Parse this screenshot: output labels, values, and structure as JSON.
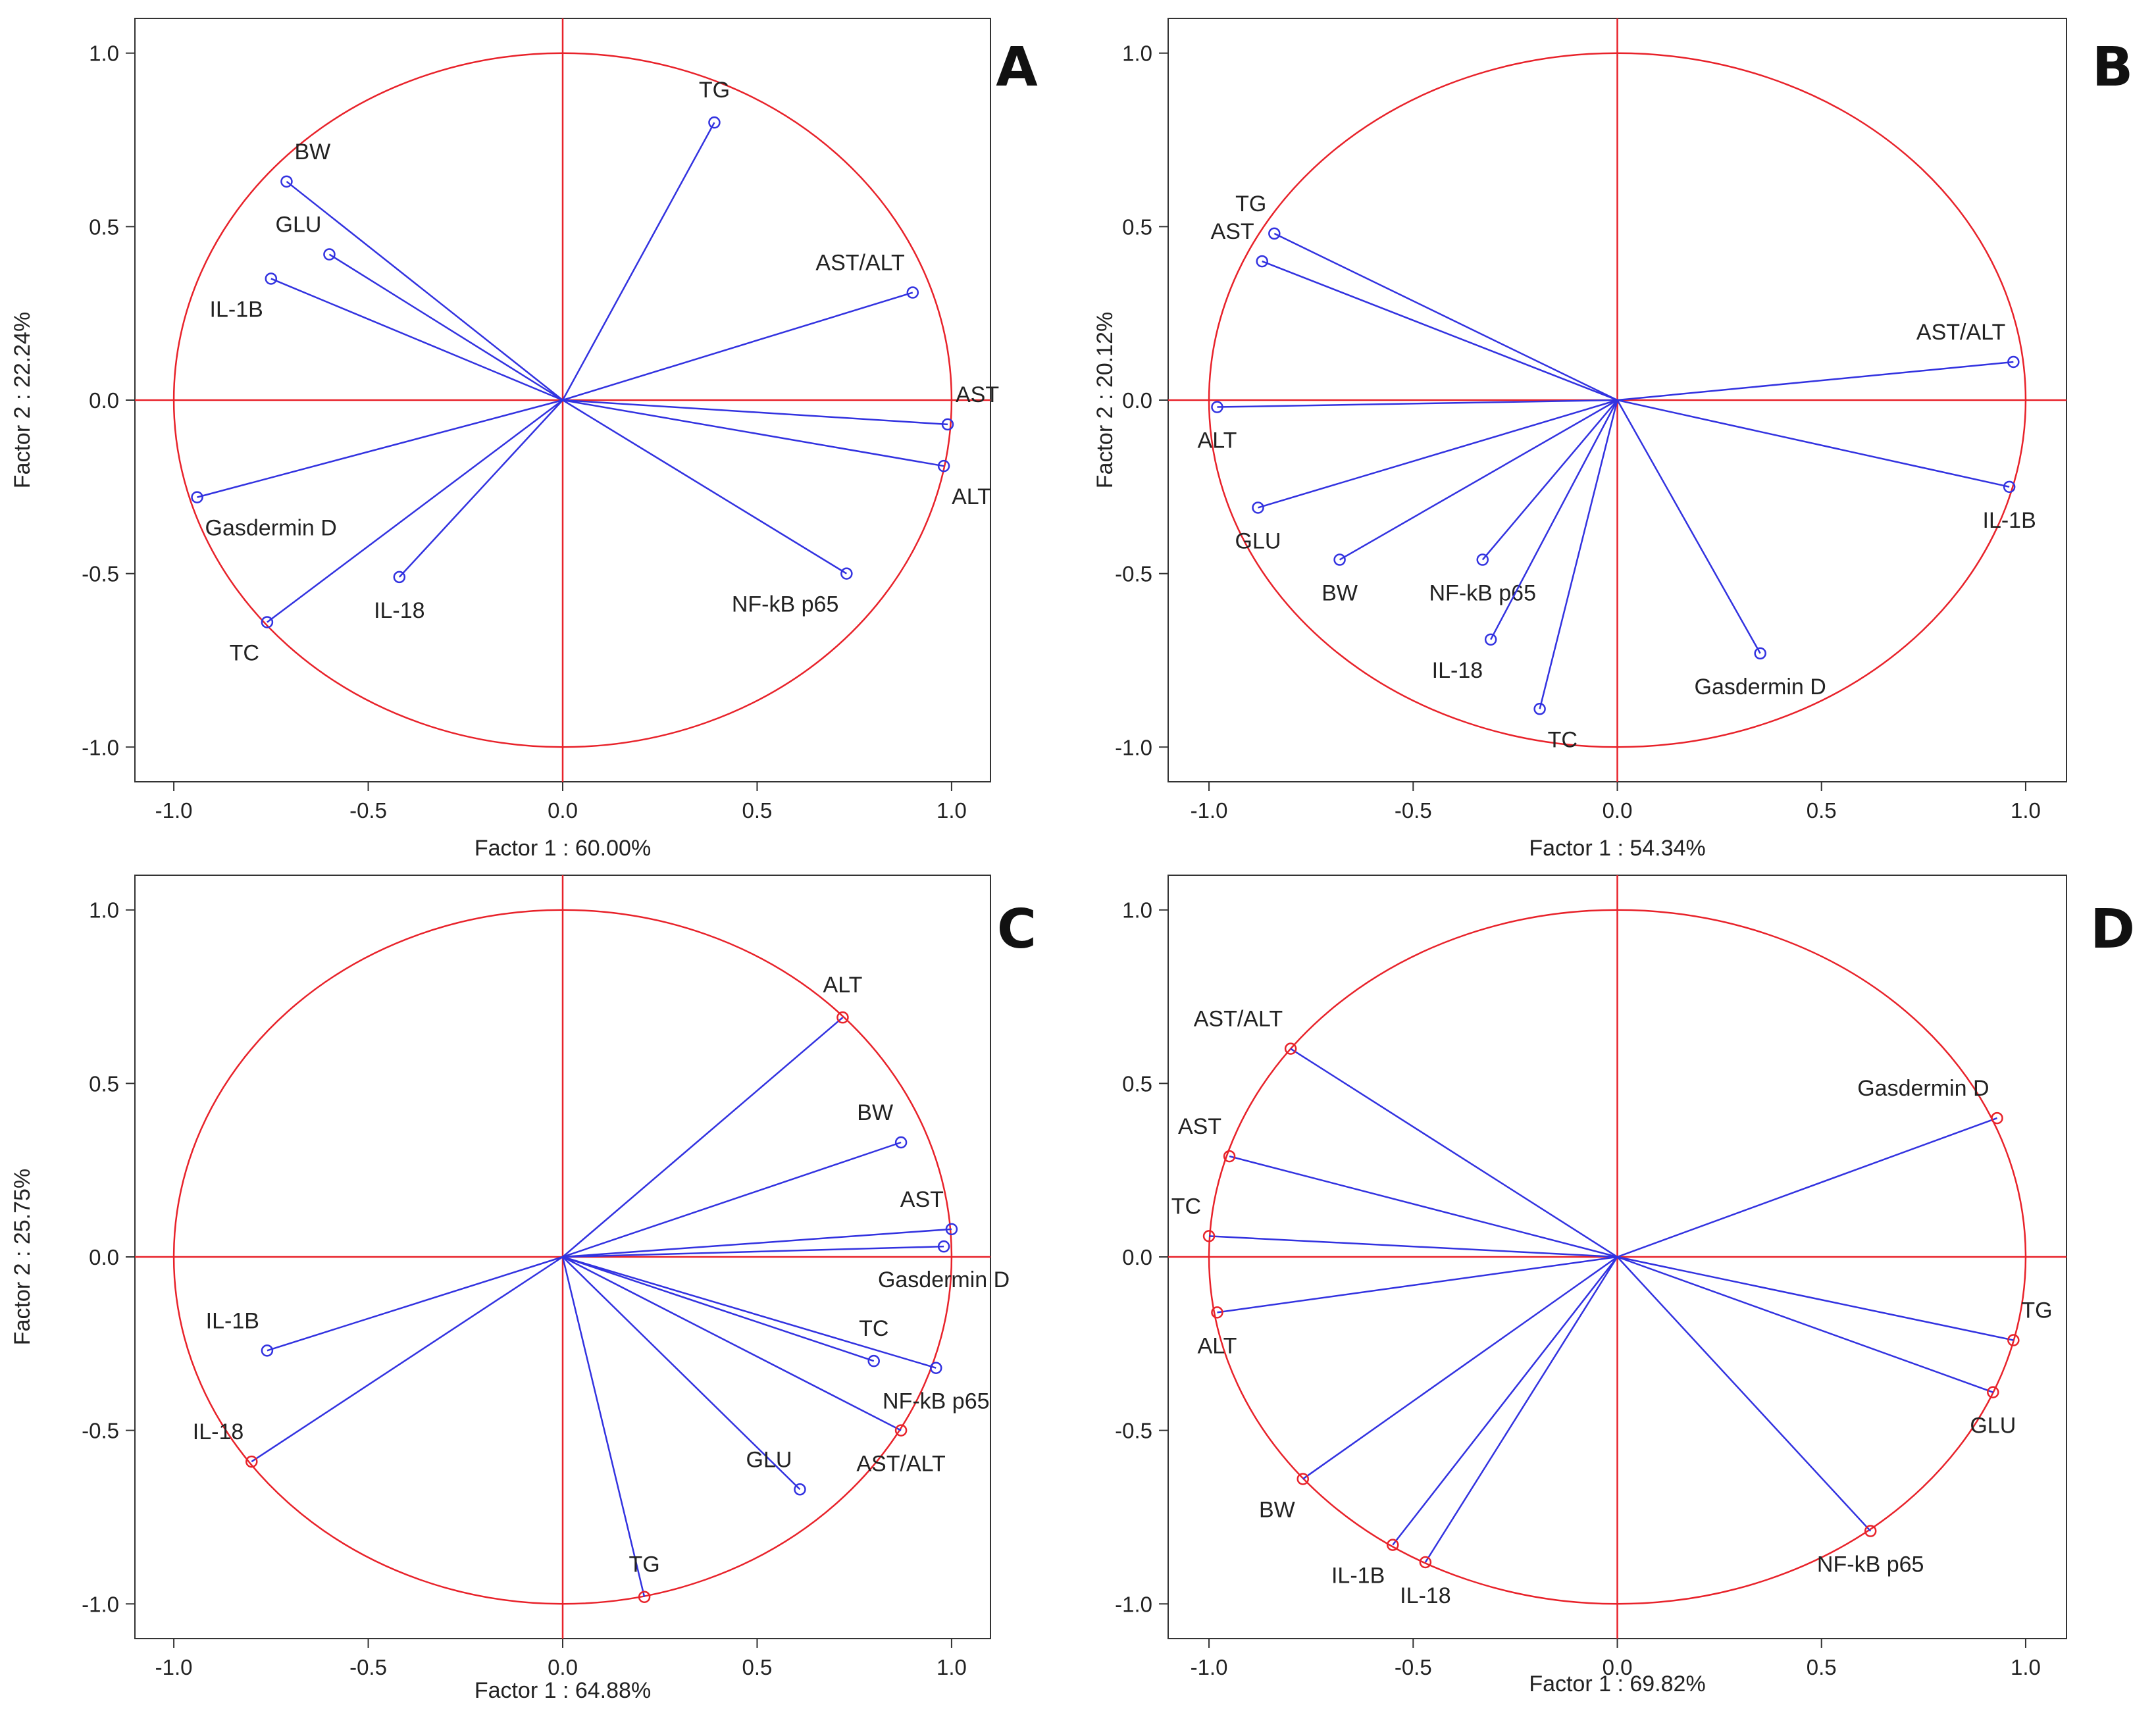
{
  "colors": {
    "circle": "#e8222a",
    "axis_line": "#e8222a",
    "vector": "#3232e0",
    "marker": "#3232e0",
    "marker_red": "#e8222a",
    "frame": "#333333",
    "text": "#222222"
  },
  "chart_data": [
    {
      "panel": "A",
      "type": "scatter",
      "title": "",
      "xlabel": "Factor 1 : 60.00%",
      "ylabel": "Factor 2 : 22.24%",
      "xlim": [
        -1.1,
        1.1
      ],
      "ylim": [
        -1.1,
        1.1
      ],
      "xticks": [
        "-1.0",
        "-0.5",
        "0.0",
        "0.5",
        "1.0"
      ],
      "yticks": [
        "1.0",
        "0.5",
        "0.0",
        "-0.5",
        "-1.0"
      ],
      "marker_color": "blue",
      "points": [
        {
          "label": "TG",
          "x": 0.39,
          "y": 0.8,
          "anchor": "above"
        },
        {
          "label": "BW",
          "x": -0.71,
          "y": 0.63,
          "anchor": "upper-right"
        },
        {
          "label": "GLU",
          "x": -0.6,
          "y": 0.42,
          "anchor": "upper-left"
        },
        {
          "label": "IL-1B",
          "x": -0.75,
          "y": 0.35,
          "anchor": "lower-left"
        },
        {
          "label": "AST/ALT",
          "x": 0.9,
          "y": 0.31,
          "anchor": "upper-left"
        },
        {
          "label": "AST",
          "x": 0.99,
          "y": -0.07,
          "anchor": "upper-right"
        },
        {
          "label": "ALT",
          "x": 0.98,
          "y": -0.19,
          "anchor": "lower-right"
        },
        {
          "label": "Gasdermin D",
          "x": -0.94,
          "y": -0.28,
          "anchor": "lower-right"
        },
        {
          "label": "NF-kB p65",
          "x": 0.73,
          "y": -0.5,
          "anchor": "lower-left"
        },
        {
          "label": "IL-18",
          "x": -0.42,
          "y": -0.51,
          "anchor": "below"
        },
        {
          "label": "TC",
          "x": -0.76,
          "y": -0.64,
          "anchor": "lower-left"
        }
      ]
    },
    {
      "panel": "B",
      "type": "scatter",
      "title": "",
      "xlabel": "Factor 1 : 54.34%",
      "ylabel": "Factor 2 : 20.12%",
      "xlim": [
        -1.1,
        1.1
      ],
      "ylim": [
        -1.1,
        1.1
      ],
      "xticks": [
        "-1.0",
        "-0.5",
        "0.0",
        "0.5",
        "1.0"
      ],
      "yticks": [
        "1.0",
        "0.5",
        "0.0",
        "-0.5",
        "-1.0"
      ],
      "marker_color": "blue",
      "points": [
        {
          "label": "TG",
          "x": -0.84,
          "y": 0.48,
          "anchor": "upper-left"
        },
        {
          "label": "AST",
          "x": -0.87,
          "y": 0.4,
          "anchor": "upper-left"
        },
        {
          "label": "AST/ALT",
          "x": 0.97,
          "y": 0.11,
          "anchor": "upper-left"
        },
        {
          "label": "ALT",
          "x": -0.98,
          "y": -0.02,
          "anchor": "below"
        },
        {
          "label": "IL-1B",
          "x": 0.96,
          "y": -0.25,
          "anchor": "below"
        },
        {
          "label": "GLU",
          "x": -0.88,
          "y": -0.31,
          "anchor": "below"
        },
        {
          "label": "BW",
          "x": -0.68,
          "y": -0.46,
          "anchor": "below"
        },
        {
          "label": "NF-kB p65",
          "x": -0.33,
          "y": -0.46,
          "anchor": "below"
        },
        {
          "label": "IL-18",
          "x": -0.31,
          "y": -0.69,
          "anchor": "lower-left"
        },
        {
          "label": "TC",
          "x": -0.19,
          "y": -0.89,
          "anchor": "lower-right"
        },
        {
          "label": "Gasdermin D",
          "x": 0.35,
          "y": -0.73,
          "anchor": "below"
        }
      ]
    },
    {
      "panel": "C",
      "type": "scatter",
      "title": "",
      "xlabel": "Factor 1 : 64.88%",
      "ylabel": "Factor 2 : 25.75%",
      "xlim": [
        -1.1,
        1.1
      ],
      "ylim": [
        -1.1,
        1.1
      ],
      "xticks": [
        "-1.0",
        "-0.5",
        "0.0",
        "0.5",
        "1.0"
      ],
      "yticks": [
        "1.0",
        "0.5",
        "0.0",
        "-0.5",
        "-1.0"
      ],
      "marker_color": "mixed",
      "points": [
        {
          "label": "ALT",
          "x": 0.72,
          "y": 0.69,
          "anchor": "above",
          "marker": "red"
        },
        {
          "label": "BW",
          "x": 0.87,
          "y": 0.33,
          "anchor": "upper-left",
          "marker": "blue"
        },
        {
          "label": "AST",
          "x": 1.0,
          "y": 0.08,
          "anchor": "upper-left",
          "marker": "blue"
        },
        {
          "label": "Gasdermin D",
          "x": 0.98,
          "y": 0.03,
          "anchor": "below",
          "marker": "blue"
        },
        {
          "label": "TC",
          "x": 0.8,
          "y": -0.3,
          "anchor": "above",
          "marker": "blue"
        },
        {
          "label": "NF-kB p65",
          "x": 0.96,
          "y": -0.32,
          "anchor": "below",
          "marker": "blue"
        },
        {
          "label": "AST/ALT",
          "x": 0.87,
          "y": -0.5,
          "anchor": "below",
          "marker": "red"
        },
        {
          "label": "GLU",
          "x": 0.61,
          "y": -0.67,
          "anchor": "upper-left",
          "marker": "blue"
        },
        {
          "label": "TG",
          "x": 0.21,
          "y": -0.98,
          "anchor": "above",
          "marker": "red"
        },
        {
          "label": "IL-1B",
          "x": -0.76,
          "y": -0.27,
          "anchor": "upper-left",
          "marker": "blue"
        },
        {
          "label": "IL-18",
          "x": -0.8,
          "y": -0.59,
          "anchor": "upper-left",
          "marker": "red"
        }
      ]
    },
    {
      "panel": "D",
      "type": "scatter",
      "title": "",
      "xlabel": "Factor 1 : 69.82%",
      "ylabel": "",
      "xlim": [
        -1.1,
        1.1
      ],
      "ylim": [
        -1.1,
        1.1
      ],
      "xticks": [
        "-1.0",
        "-0.5",
        "0.0",
        "0.5",
        "1.0"
      ],
      "yticks": [
        "1.0",
        "0.5",
        "0.0",
        "-0.5",
        "-1.0"
      ],
      "marker_color": "red",
      "points": [
        {
          "label": "AST/ALT",
          "x": -0.8,
          "y": 0.6,
          "anchor": "upper-left"
        },
        {
          "label": "AST",
          "x": -0.95,
          "y": 0.29,
          "anchor": "upper-left"
        },
        {
          "label": "TC",
          "x": -1.0,
          "y": 0.06,
          "anchor": "upper-left"
        },
        {
          "label": "ALT",
          "x": -0.98,
          "y": -0.16,
          "anchor": "below"
        },
        {
          "label": "BW",
          "x": -0.77,
          "y": -0.64,
          "anchor": "lower-left"
        },
        {
          "label": "IL-1B",
          "x": -0.55,
          "y": -0.83,
          "anchor": "lower-left"
        },
        {
          "label": "IL-18",
          "x": -0.47,
          "y": -0.88,
          "anchor": "below"
        },
        {
          "label": "Gasdermin D",
          "x": 0.93,
          "y": 0.4,
          "anchor": "upper-left"
        },
        {
          "label": "TG",
          "x": 0.97,
          "y": -0.24,
          "anchor": "upper-right"
        },
        {
          "label": "GLU",
          "x": 0.92,
          "y": -0.39,
          "anchor": "below"
        },
        {
          "label": "NF-kB p65",
          "x": 0.62,
          "y": -0.79,
          "anchor": "below"
        }
      ]
    }
  ]
}
